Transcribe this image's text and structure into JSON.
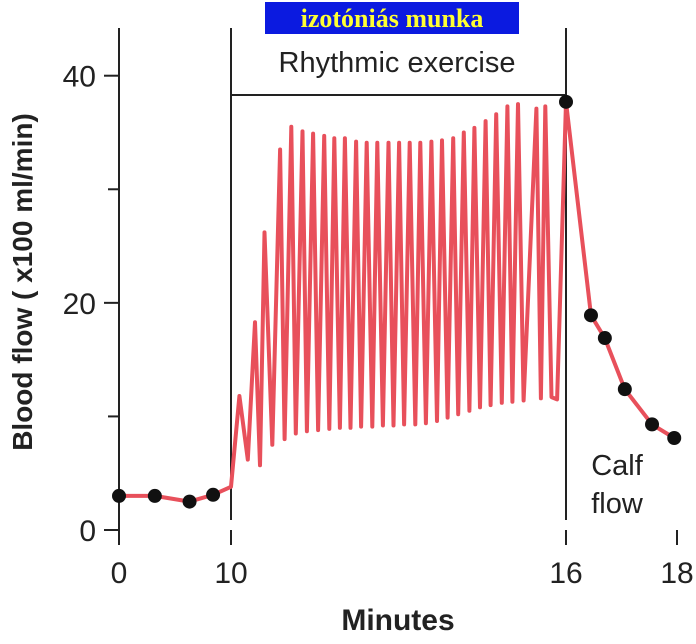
{
  "chart_data": {
    "type": "line",
    "title": "izotóniás munka",
    "x_label": "Minutes",
    "y_label": "Blood flow ( x100 ml/min)",
    "annotations": {
      "phase": "Rhythmic exercise",
      "calf": [
        "Calf",
        "flow"
      ]
    },
    "xlim": [
      0,
      18
    ],
    "xticks": [
      0,
      10,
      16,
      18
    ],
    "ylim": [
      0,
      44.2
    ],
    "yticks": [
      0,
      20,
      40
    ],
    "yminor_ticks": [
      10,
      30
    ],
    "vlines": [
      10,
      16
    ],
    "bracket": {
      "x": [
        10,
        16
      ],
      "y": 38.3
    },
    "series": [
      {
        "color": "#e8505b",
        "line": true,
        "markers": false,
        "x": [
          0,
          3.2,
          6.3,
          8.4,
          10.0,
          10.15,
          10.3,
          10.43,
          10.52,
          10.6,
          10.74,
          10.88,
          10.96,
          11.08,
          11.16,
          11.28,
          11.36,
          11.47,
          11.56,
          11.67,
          11.76,
          11.85,
          11.95,
          12.04,
          12.14,
          12.24,
          12.33,
          12.43,
          12.53,
          12.62,
          12.72,
          12.82,
          12.91,
          13.01,
          13.1,
          13.2,
          13.3,
          13.39,
          13.49,
          13.59,
          13.69,
          13.78,
          13.88,
          13.98,
          14.07,
          14.17,
          14.27,
          14.36,
          14.46,
          14.56,
          14.65,
          14.75,
          14.85,
          14.95,
          15.04,
          15.14,
          15.24,
          15.47,
          15.55,
          15.63,
          15.74,
          15.84,
          16.0,
          16.45,
          16.7,
          17.06,
          17.55,
          17.95
        ],
        "values": [
          3.0,
          3.0,
          2.5,
          3.1,
          3.8,
          11.8,
          6.2,
          18.3,
          5.7,
          26.2,
          7.5,
          33.5,
          8.0,
          35.5,
          8.5,
          35.1,
          8.7,
          34.9,
          8.8,
          34.7,
          8.9,
          34.5,
          9.0,
          34.5,
          9.0,
          34.2,
          9.1,
          34.1,
          9.1,
          34.1,
          9.2,
          34.1,
          9.2,
          34.1,
          9.3,
          34.1,
          9.3,
          34.1,
          9.4,
          34.2,
          9.6,
          34.3,
          9.9,
          34.5,
          10.2,
          35.0,
          10.5,
          35.4,
          10.8,
          36.0,
          11.0,
          36.6,
          11.2,
          37.3,
          11.3,
          37.5,
          11.4,
          37.1,
          11.6,
          37.3,
          11.7,
          11.5,
          37.7,
          18.9,
          16.9,
          12.4,
          9.3,
          8.1
        ]
      },
      {
        "color": "#111111",
        "line": false,
        "markers": true,
        "x": [
          0,
          3.2,
          6.3,
          8.4,
          16.0,
          16.45,
          16.7,
          17.06,
          17.55,
          17.95
        ],
        "values": [
          3.0,
          3.0,
          2.5,
          3.1,
          37.7,
          18.9,
          16.9,
          12.4,
          9.3,
          8.1
        ]
      }
    ]
  }
}
